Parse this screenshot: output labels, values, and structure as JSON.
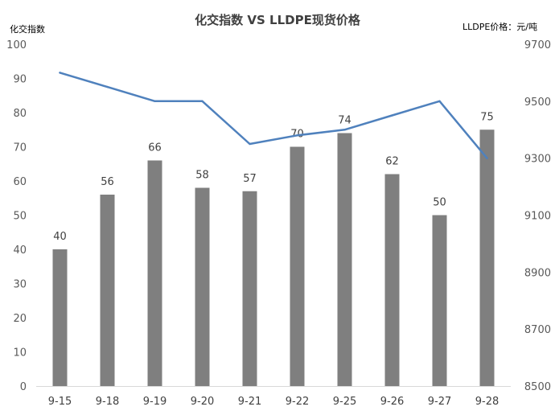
{
  "chart_data": {
    "type": "bar",
    "title": "化交指数 VS LLDPE现货价格",
    "y_left_label": "化交指数",
    "y_right_label": "LLDPE价格：元/吨",
    "categories": [
      "9-15",
      "9-18",
      "9-19",
      "9-20",
      "9-21",
      "9-22",
      "9-25",
      "9-26",
      "9-27",
      "9-28"
    ],
    "series": [
      {
        "type": "bar",
        "axis": "left",
        "color": "#7f7f7f",
        "values": [
          40,
          56,
          66,
          58,
          57,
          70,
          74,
          62,
          50,
          75
        ],
        "data_labels": [
          "40",
          "56",
          "66",
          "58",
          "57",
          "70",
          "74",
          "62",
          "50",
          "75"
        ]
      },
      {
        "type": "line",
        "axis": "right",
        "color": "#4f81bd",
        "values": [
          9600,
          9550,
          9500,
          9500,
          9350,
          9380,
          9400,
          9450,
          9500,
          9300
        ]
      }
    ],
    "y_left": {
      "min": 0,
      "max": 100,
      "step": 10,
      "ticks": [
        "0",
        "10",
        "20",
        "30",
        "40",
        "50",
        "60",
        "70",
        "80",
        "90",
        "100"
      ]
    },
    "y_right": {
      "min": 8500,
      "max": 9700,
      "step": 200,
      "ticks": [
        "8500",
        "8700",
        "8900",
        "9100",
        "9300",
        "9500",
        "9700"
      ]
    },
    "grid": false,
    "legend": "none"
  }
}
